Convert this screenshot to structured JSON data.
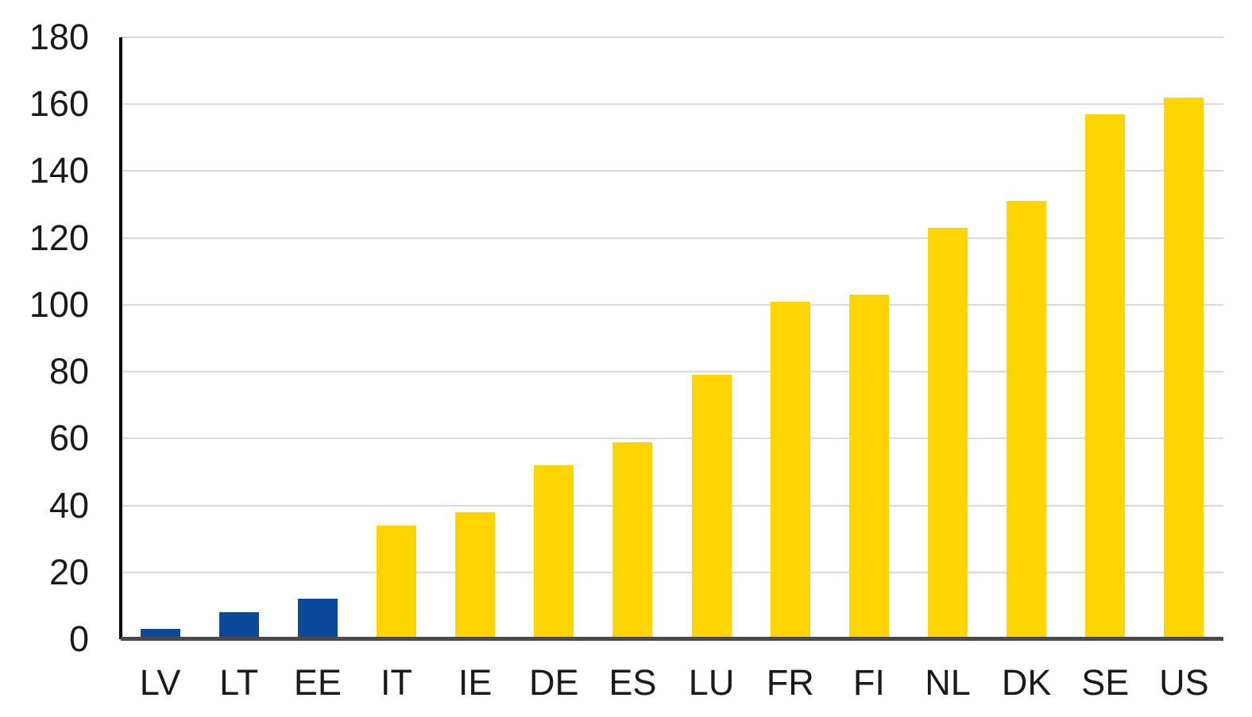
{
  "chart_data": {
    "type": "bar",
    "title": "",
    "xlabel": "",
    "ylabel": "",
    "categories": [
      "LV",
      "LT",
      "EE",
      "IT",
      "IE",
      "DE",
      "ES",
      "LU",
      "FR",
      "FI",
      "NL",
      "DK",
      "SE",
      "US"
    ],
    "values": [
      3,
      8,
      12,
      34,
      38,
      52,
      59,
      79,
      101,
      103,
      123,
      131,
      157,
      162
    ],
    "bar_colors": [
      "#0B4A9B",
      "#0B4A9B",
      "#0B4A9B",
      "#FFD400",
      "#FFD400",
      "#FFD400",
      "#FFD400",
      "#FFD400",
      "#FFD400",
      "#FFD400",
      "#FFD400",
      "#FFD400",
      "#FFD400",
      "#FFD400"
    ],
    "yticks": [
      0,
      20,
      40,
      60,
      80,
      100,
      120,
      140,
      160,
      180
    ],
    "ylim": [
      0,
      180
    ],
    "grid": true,
    "legend_position": "none"
  },
  "colors": {
    "bar_blue": "#0B4A9B",
    "bar_yellow": "#FFD400",
    "gridline": "#D9D9D9",
    "y_axis_line": "#000000",
    "baseline": "#4A4A4A",
    "tick_text": "#1A1A1A",
    "background": "#FFFFFF"
  }
}
